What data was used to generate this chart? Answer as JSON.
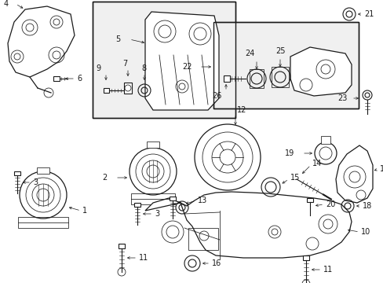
{
  "bg_color": "#ffffff",
  "line_color": "#1a1a1a",
  "fig_width": 4.89,
  "fig_height": 3.6,
  "dpi": 100,
  "label_fs": 7.0,
  "lw_main": 0.9,
  "lw_thin": 0.55,
  "lw_label": 0.5
}
